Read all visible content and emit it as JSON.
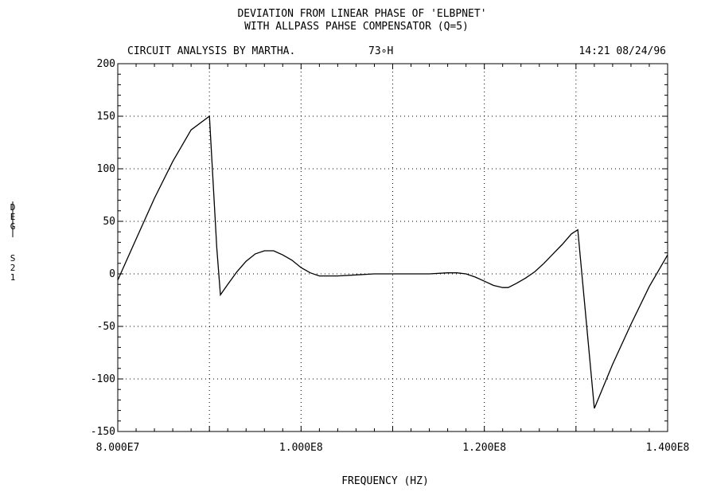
{
  "chart_data": {
    "type": "line",
    "title": "DEVIATION FROM LINEAR PHASE OF 'ELBPNET'",
    "subtitle": "WITH ALLPASS PAHSE COMPENSATOR (Q=5)",
    "header_left": "CIRCUIT ANALYSIS BY MARTHA.",
    "header_mid": "73∘H",
    "header_right": "14:21 08/24/96",
    "xlabel": "FREQUENCY (HZ)",
    "ylabel_top": "DEG",
    "ylabel_bottom": "S21",
    "xlim": [
      80000000,
      140000000
    ],
    "ylim": [
      -150,
      200
    ],
    "x_ticks": [
      80000000,
      100000000,
      120000000,
      140000000
    ],
    "x_tick_labels": [
      "8.000E7",
      "1.000E8",
      "1.200E8",
      "1.400E8"
    ],
    "y_ticks": [
      200,
      150,
      100,
      50,
      0,
      -50,
      -100,
      -150
    ],
    "y_tick_labels": [
      "200",
      "150",
      "100",
      "50",
      "0",
      "-50",
      "-100",
      "-150"
    ],
    "grid": true,
    "series": [
      {
        "x": [
          80000000,
          82000000,
          84000000,
          86000000,
          88000000,
          90000000,
          90800000,
          91200000,
          92000000,
          93000000,
          94000000,
          95000000,
          96000000,
          97000000,
          98000000,
          99000000,
          100000000,
          101000000,
          102000000,
          104000000,
          106000000,
          108000000,
          110000000,
          112000000,
          114000000,
          116000000,
          117000000,
          118000000,
          119000000,
          120000000,
          121000000,
          122000000,
          122600000,
          123500000,
          124500000,
          125500000,
          126500000,
          127500000,
          128500000,
          129500000,
          130200000,
          132000000,
          134000000,
          136000000,
          138000000,
          140000000
        ],
        "y": [
          -6,
          33,
          72,
          107,
          137,
          150,
          25,
          -20,
          -10,
          2,
          12,
          19,
          22,
          22,
          18,
          13,
          6,
          1,
          -2,
          -2,
          -1,
          0,
          0,
          0,
          0,
          1,
          1,
          0,
          -3,
          -7,
          -11,
          -13,
          -13,
          -9,
          -4,
          2,
          10,
          19,
          28,
          38,
          42,
          -128,
          -86,
          -48,
          -12,
          18
        ]
      }
    ]
  }
}
